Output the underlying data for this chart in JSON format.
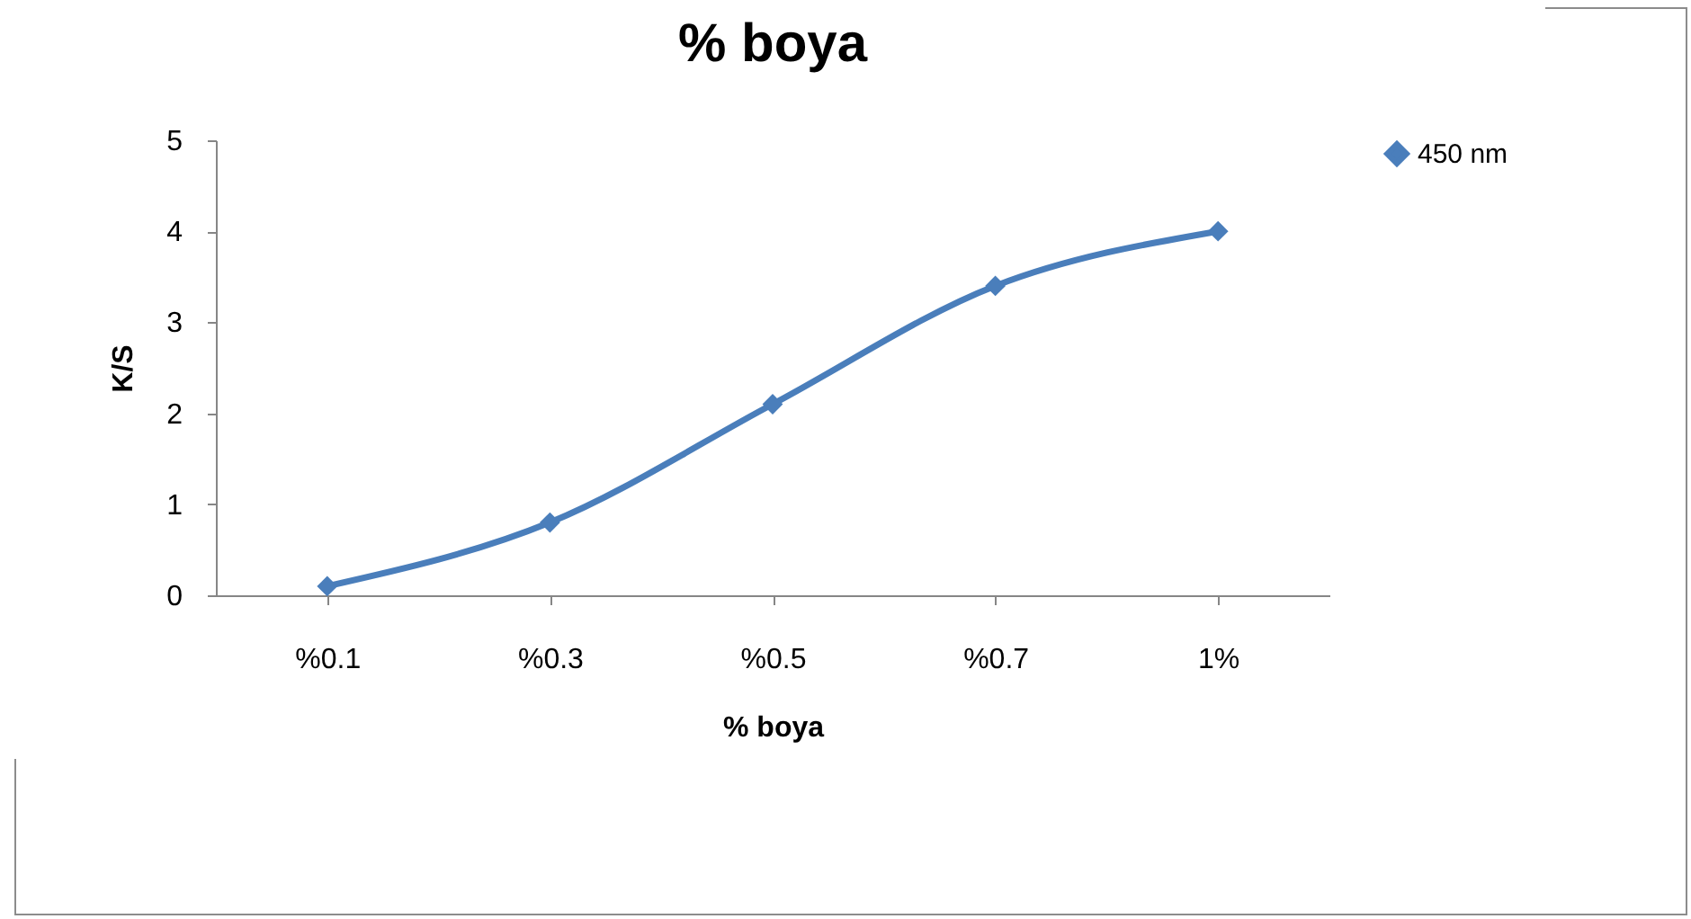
{
  "chart_data": {
    "type": "line",
    "title": "% boya",
    "xlabel": "% boya",
    "ylabel": "K/S",
    "categories": [
      "%0.1",
      "%0.3",
      "%0.5",
      "%0.7",
      "1%"
    ],
    "series": [
      {
        "name": "450 nm",
        "color": "#4a7ebb",
        "values": [
          0.1,
          0.8,
          2.1,
          3.4,
          4.0
        ]
      }
    ],
    "ylim": [
      0,
      5
    ],
    "yticks": [
      0,
      1,
      2,
      3,
      4,
      5
    ],
    "grid": false,
    "legend": "right",
    "marker": "diamond",
    "line_style": "solid"
  }
}
